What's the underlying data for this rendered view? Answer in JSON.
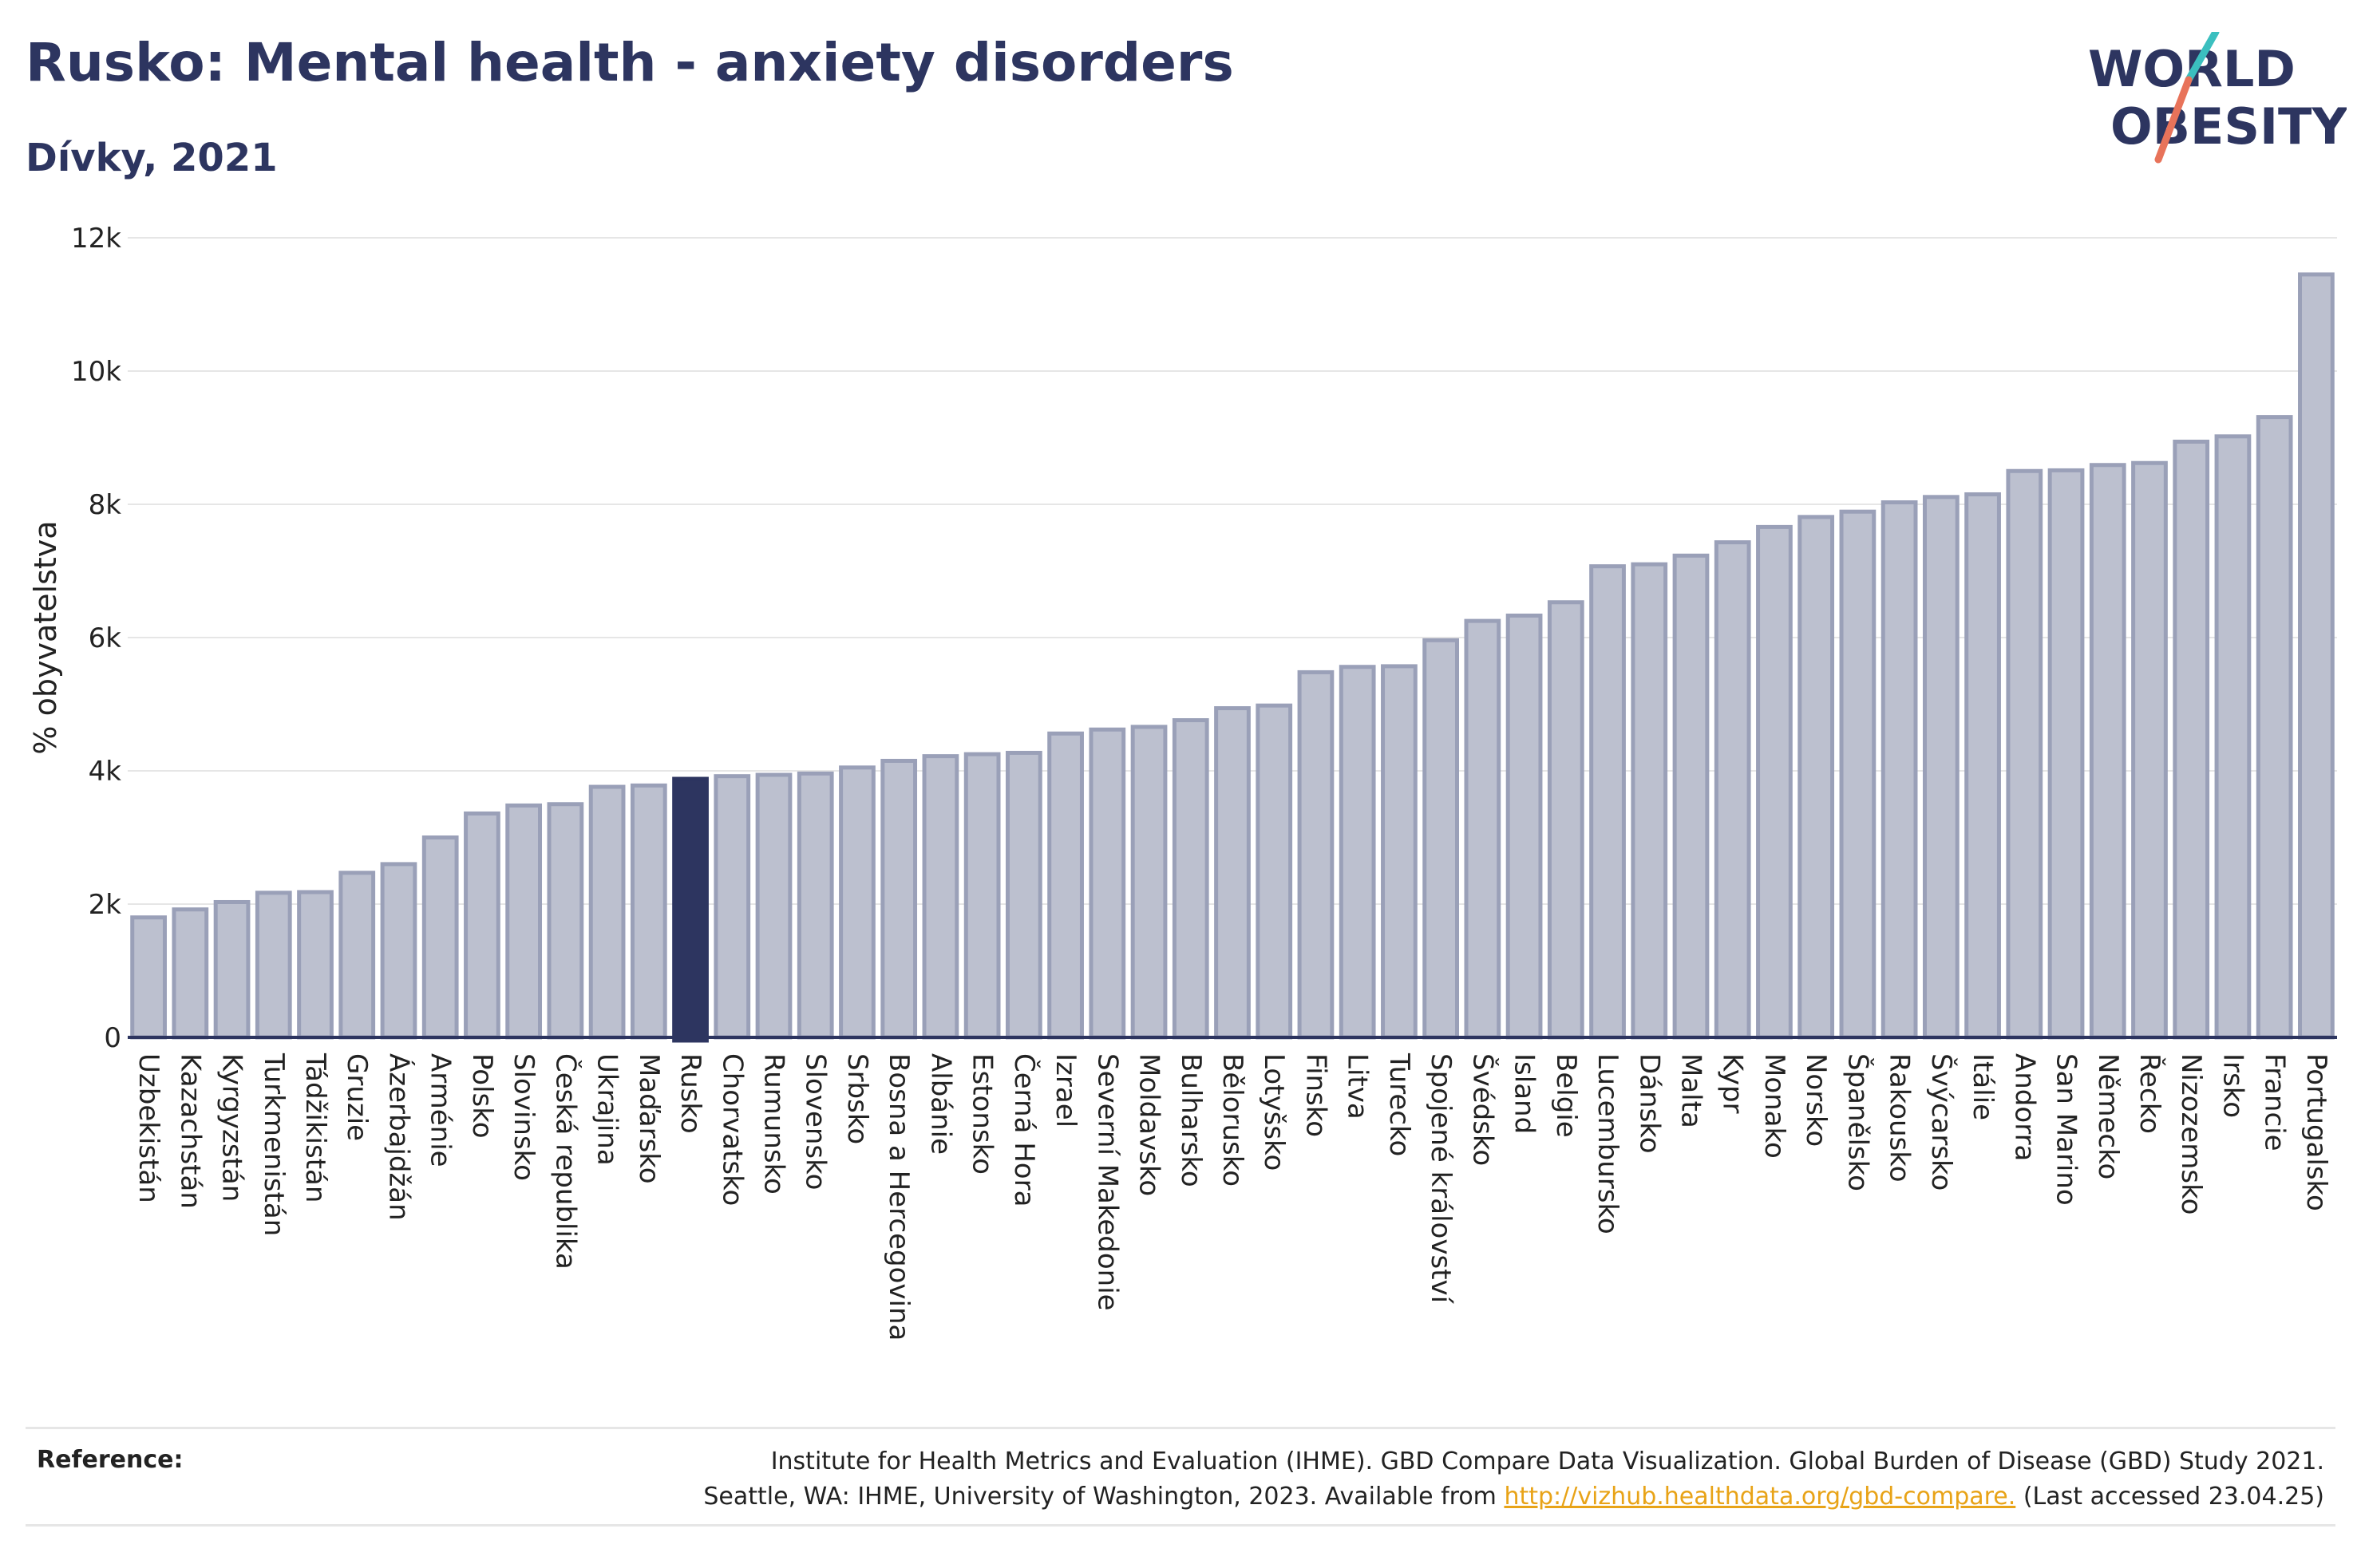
{
  "header": {
    "title": "Rusko: Mental health - anxiety disorders",
    "subtitle": "Dívky, 2021"
  },
  "logo": {
    "line1": "WORLD",
    "line2": "OBESITY"
  },
  "colors": {
    "bar": "#bcc0cf",
    "bar_stroke": "#9aa0b8",
    "highlight": "#2d3560",
    "text": "#2d3560",
    "grid": "#e6e6e6"
  },
  "chart_data": {
    "type": "bar",
    "ylabel": "% obyvatelstva",
    "ylim": [
      0,
      12000
    ],
    "yticks": [
      0,
      2000,
      4000,
      6000,
      8000,
      10000,
      12000
    ],
    "ytick_labels": [
      "0",
      "2k",
      "4k",
      "6k",
      "8k",
      "10k",
      "12k"
    ],
    "grid": true,
    "highlight": "Rusko",
    "categories": [
      "Uzbekistán",
      "Kazachstán",
      "Kyrgyzstán",
      "Turkmenistán",
      "Tádžikistán",
      "Gruzie",
      "Ázerbajdžán",
      "Arménie",
      "Polsko",
      "Slovinsko",
      "Česká republika",
      "Ukrajina",
      "Maďarsko",
      "Rusko",
      "Chorvatsko",
      "Rumunsko",
      "Slovensko",
      "Srbsko",
      "Bosna a Hercegovina",
      "Albánie",
      "Estonsko",
      "Černá Hora",
      "Izrael",
      "Severní Makedonie",
      "Moldavsko",
      "Bulharsko",
      "Bělorusko",
      "Lotyšsko",
      "Finsko",
      "Litva",
      "Turecko",
      "Spojené království",
      "Švédsko",
      "Island",
      "Belgie",
      "Lucembursko",
      "Dánsko",
      "Malta",
      "Kypr",
      "Monako",
      "Norsko",
      "Španělsko",
      "Rakousko",
      "Švýcarsko",
      "Itálie",
      "Andorra",
      "San Marino",
      "Německo",
      "Řecko",
      "Nizozemsko",
      "Irsko",
      "Francie",
      "Portugalsko"
    ],
    "values": [
      1800,
      1920,
      2030,
      2170,
      2180,
      2470,
      2600,
      3000,
      3360,
      3480,
      3500,
      3760,
      3780,
      3880,
      3920,
      3940,
      3960,
      4050,
      4150,
      4220,
      4250,
      4270,
      4560,
      4620,
      4660,
      4760,
      4940,
      4980,
      5480,
      5560,
      5570,
      5960,
      6250,
      6330,
      6530,
      7070,
      7100,
      7230,
      7430,
      7660,
      7810,
      7890,
      8030,
      8110,
      8150,
      8500,
      8510,
      8590,
      8620,
      8940,
      9020,
      9310,
      11450
    ]
  },
  "reference": {
    "label": "Reference:",
    "line1": "Institute for Health Metrics and Evaluation (IHME). GBD Compare Data Visualization. Global Burden of Disease (GBD) Study 2021.",
    "line2_pre": "Seattle, WA: IHME, University of Washington, 2023. Available from ",
    "link": "http://vizhub.healthdata.org/gbd-compare.",
    "line2_post": " (Last accessed 23.04.25)"
  }
}
